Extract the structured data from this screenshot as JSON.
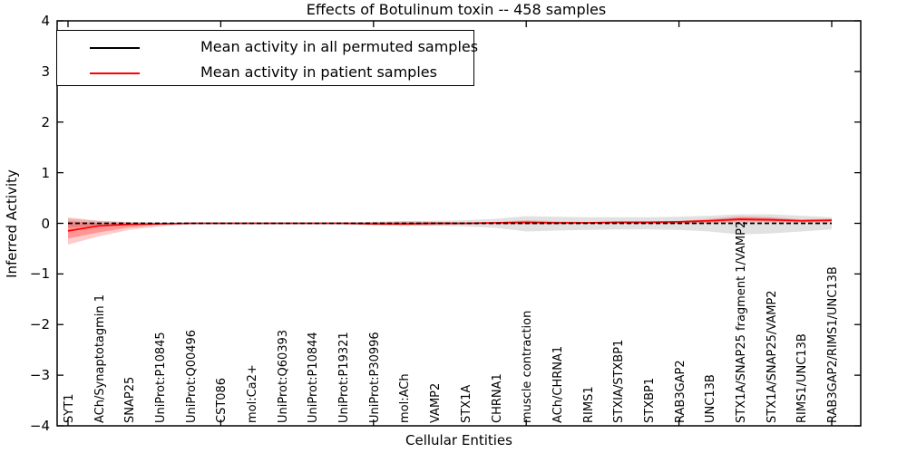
{
  "figure": {
    "title": "Effects of Botulinum toxin -- 458 samples",
    "xlabel": "Cellular Entities",
    "ylabel": "Inferred Activity"
  },
  "colors": {
    "background": "#ffffff",
    "axis": "#000000",
    "permuted_line": "#000000",
    "patient_line": "#ff0000",
    "permuted_band": "#aaaaaa",
    "patient_band": "#ff0000"
  },
  "chart_data": {
    "type": "line",
    "title": "Effects of Botulinum toxin -- 458 samples",
    "xlabel": "Cellular Entities",
    "ylabel": "Inferred Activity",
    "ylim": [
      -4,
      4
    ],
    "yticks": [
      -4,
      -3,
      -2,
      -1,
      0,
      1,
      2,
      3,
      4
    ],
    "ytick_labels": [
      "−4",
      "−3",
      "−2",
      "−1",
      "0",
      "1",
      "2",
      "3",
      "4"
    ],
    "xtick_indices": [
      0,
      5,
      10,
      15,
      20,
      25
    ],
    "grid": false,
    "legend_position": "upper left",
    "categories": [
      "SYT1",
      "ACh/Synaptotagmin 1",
      "SNAP25",
      "UniProt:P10845",
      "UniProt:Q00496",
      "CST086",
      "mol:Ca2+",
      "UniProt:Q60393",
      "UniProt:P10844",
      "UniProt:P19321",
      "UniProt:P30996",
      "mol:ACh",
      "VAMP2",
      "STX1A",
      "CHRNA1",
      "muscle contraction",
      "ACh/CHRNA1",
      "RIMS1",
      "STXIA/STXBP1",
      "STXBP1",
      "RAB3GAP2",
      "UNC13B",
      "STX1A/SNAP25 fragment 1/VAMP2",
      "STX1A/SNAP25/VAMP2",
      "RIMS1/UNC13B",
      "RAB3GAP2/RIMS1/UNC13B"
    ],
    "series": [
      {
        "name": "Mean activity in all permuted samples",
        "color": "#000000",
        "line_style": "dashed",
        "values": [
          0,
          0,
          0,
          0,
          0,
          0,
          0,
          0,
          0,
          0,
          0,
          0,
          0,
          0,
          0,
          0,
          0,
          0,
          0,
          0,
          0,
          0,
          0,
          0,
          0,
          0
        ],
        "band": {
          "color": "#aaaaaa",
          "opacity": 0.35,
          "upper": [
            0.09,
            0.05,
            0.03,
            0.02,
            0.015,
            0.015,
            0.015,
            0.015,
            0.015,
            0.02,
            0.03,
            0.04,
            0.05,
            0.06,
            0.09,
            0.14,
            0.13,
            0.12,
            0.12,
            0.12,
            0.13,
            0.15,
            0.18,
            0.18,
            0.15,
            0.12
          ],
          "lower": [
            -0.09,
            -0.05,
            -0.03,
            -0.02,
            -0.015,
            -0.015,
            -0.015,
            -0.015,
            -0.015,
            -0.02,
            -0.03,
            -0.04,
            -0.05,
            -0.06,
            -0.09,
            -0.16,
            -0.14,
            -0.13,
            -0.12,
            -0.12,
            -0.13,
            -0.16,
            -0.22,
            -0.2,
            -0.16,
            -0.12
          ]
        }
      },
      {
        "name": "Mean activity in patient samples",
        "color": "#ff0000",
        "line_style": "solid",
        "values": [
          -0.15,
          -0.05,
          -0.02,
          -0.01,
          0,
          0,
          0,
          0,
          0,
          0,
          -0.01,
          -0.01,
          0,
          0,
          0.01,
          0.02,
          0.01,
          0.01,
          0.02,
          0.02,
          0.03,
          0.05,
          0.08,
          0.07,
          0.05,
          0.06
        ],
        "band_outer": {
          "color": "#ff0000",
          "opacity": 0.2,
          "upper": [
            0.12,
            0.05,
            0.02,
            0.01,
            0.01,
            0.01,
            0.01,
            0.01,
            0.01,
            0.02,
            0.03,
            0.04,
            0.03,
            0.02,
            0.03,
            0.06,
            0.04,
            0.03,
            0.04,
            0.04,
            0.05,
            0.09,
            0.14,
            0.12,
            0.08,
            0.09
          ],
          "lower": [
            -0.42,
            -0.26,
            -0.13,
            -0.06,
            -0.02,
            -0.01,
            -0.01,
            -0.01,
            -0.01,
            -0.02,
            -0.04,
            -0.05,
            -0.04,
            -0.02,
            -0.02,
            -0.02,
            -0.02,
            -0.01,
            -0.01,
            -0.01,
            -0.01,
            0.0,
            0.02,
            0.02,
            0.01,
            0.02
          ]
        },
        "band_inner": {
          "color": "#ff0000",
          "opacity": 0.27,
          "upper": [
            0.04,
            0.01,
            0.0,
            0.0,
            0.005,
            0.005,
            0.005,
            0.005,
            0.005,
            0.01,
            0.015,
            0.02,
            0.015,
            0.01,
            0.015,
            0.035,
            0.025,
            0.02,
            0.03,
            0.03,
            0.04,
            0.07,
            0.11,
            0.1,
            0.065,
            0.075
          ],
          "lower": [
            -0.3,
            -0.18,
            -0.08,
            -0.03,
            -0.01,
            -0.005,
            -0.005,
            -0.005,
            -0.005,
            -0.01,
            -0.02,
            -0.03,
            -0.02,
            -0.01,
            -0.01,
            -0.005,
            -0.005,
            0.0,
            0.0,
            0.0,
            0.005,
            0.02,
            0.05,
            0.04,
            0.03,
            0.04
          ]
        }
      }
    ]
  }
}
